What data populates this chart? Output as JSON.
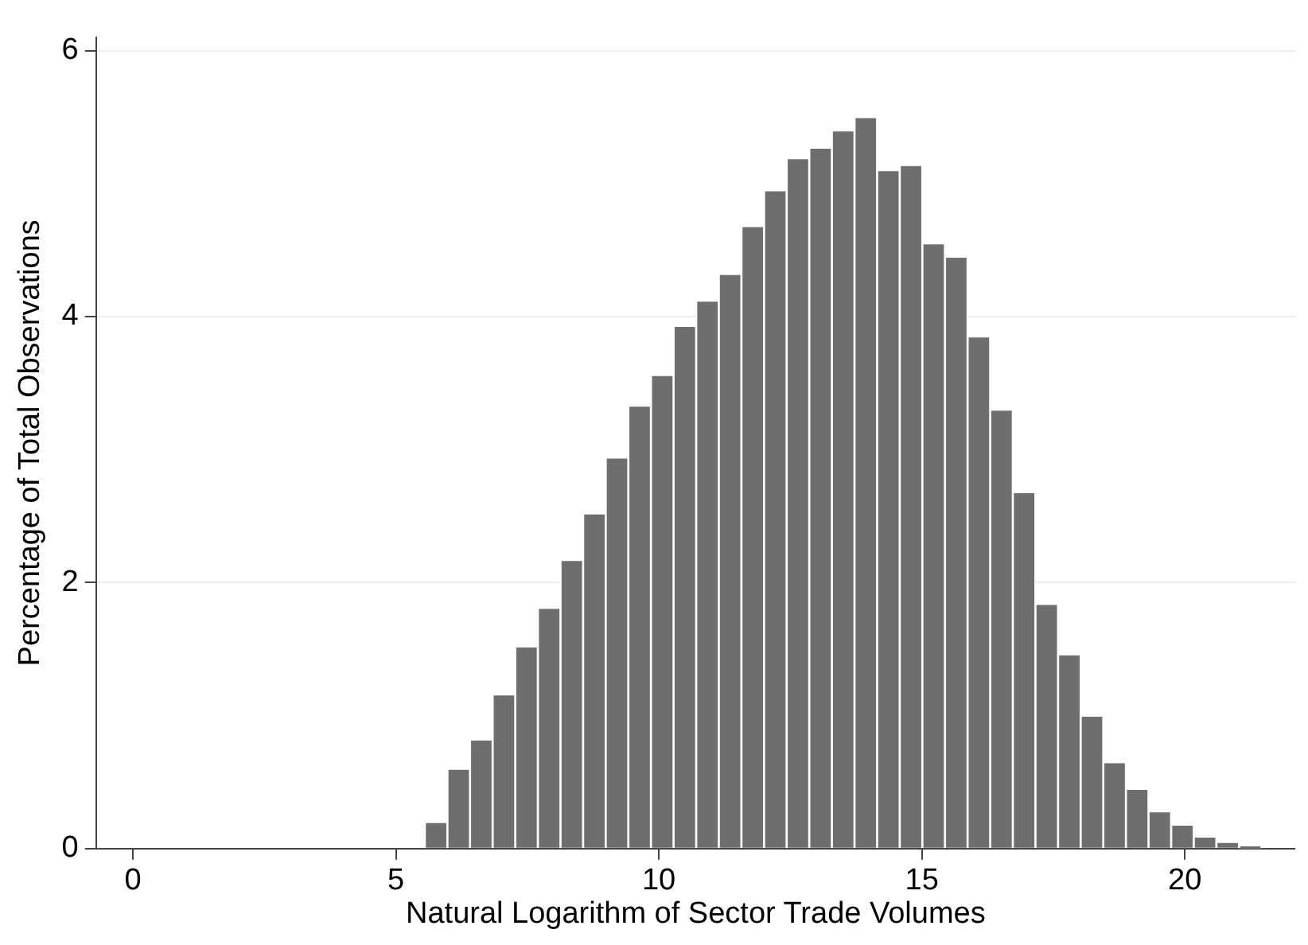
{
  "chart_data": {
    "type": "histogram",
    "xlabel": "Natural Logarithm of Sector Trade Volumes",
    "ylabel": "Percentage of Total Observations",
    "bins": [
      5.55,
      5.98,
      6.41,
      6.84,
      7.27,
      7.7,
      8.13,
      8.56,
      8.99,
      9.42,
      9.85,
      10.28,
      10.71,
      11.14,
      11.57,
      12,
      12.43,
      12.86,
      13.29,
      13.72,
      14.15,
      14.58,
      15.01,
      15.44,
      15.87,
      16.3,
      16.73,
      17.16,
      17.59,
      18.02,
      18.45,
      18.88,
      19.31,
      19.74,
      20.17,
      20.6,
      21.03,
      21.46
    ],
    "values": [
      0.2,
      0.6,
      0.82,
      1.16,
      1.52,
      1.81,
      2.17,
      2.52,
      2.94,
      3.33,
      3.56,
      3.93,
      4.12,
      4.32,
      4.68,
      4.95,
      5.19,
      5.27,
      5.4,
      5.5,
      5.1,
      5.14,
      4.55,
      4.45,
      3.85,
      3.3,
      2.68,
      1.84,
      1.46,
      1.0,
      0.65,
      0.45,
      0.28,
      0.18,
      0.09,
      0.05,
      0.02
    ],
    "color": "#6e6e6e",
    "xlim": [
      -0.7,
      22.1
    ],
    "xticks": [
      0,
      5,
      10,
      15,
      20
    ],
    "ylim": [
      0,
      6.1
    ],
    "yticks": [
      0,
      2,
      4,
      6
    ],
    "grid": "y"
  }
}
